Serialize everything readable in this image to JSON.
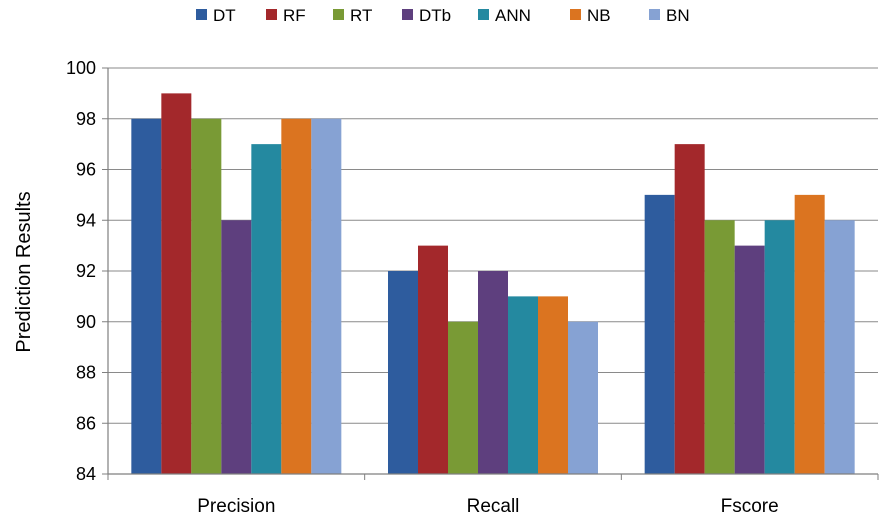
{
  "chart_data": {
    "type": "bar",
    "title": "",
    "xlabel": "",
    "ylabel": "Prediction Results",
    "categories": [
      "Precision",
      "Recall",
      "Fscore"
    ],
    "ylim": [
      84,
      100
    ],
    "yticks": [
      84,
      86,
      88,
      90,
      92,
      94,
      96,
      98,
      100
    ],
    "grid": "horizontal",
    "legend_position": "top",
    "series": [
      {
        "name": "DT",
        "color": "#2E5C9E",
        "values": [
          98,
          92,
          95
        ]
      },
      {
        "name": "RF",
        "color": "#A3282B",
        "values": [
          99,
          93,
          97
        ]
      },
      {
        "name": "RT",
        "color": "#799A35",
        "values": [
          98,
          90,
          94
        ]
      },
      {
        "name": "DTb",
        "color": "#5E3F7E",
        "values": [
          94,
          92,
          93
        ]
      },
      {
        "name": "ANN",
        "color": "#2489A0",
        "values": [
          97,
          91,
          94
        ]
      },
      {
        "name": "NB",
        "color": "#DB7420",
        "values": [
          98,
          91,
          95
        ]
      },
      {
        "name": "BN",
        "color": "#86A2D3",
        "values": [
          98,
          90,
          94
        ]
      }
    ]
  }
}
